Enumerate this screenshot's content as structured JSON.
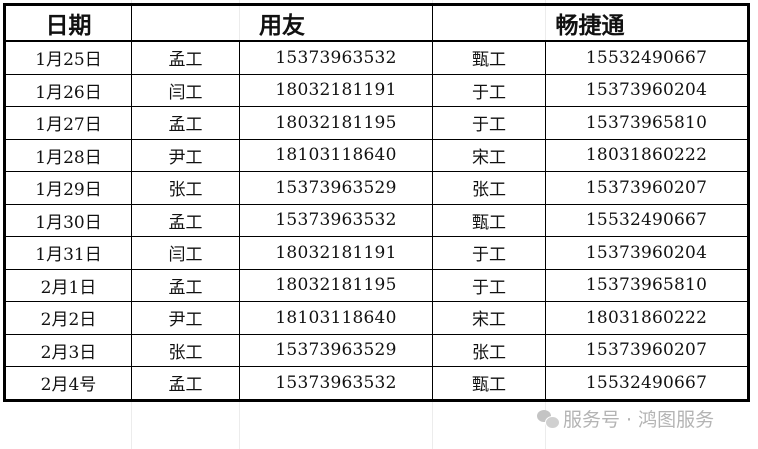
{
  "header": {
    "date": "日期",
    "vendor_a": "用友",
    "vendor_b": "畅捷通"
  },
  "rows": [
    {
      "date": "1月25日",
      "a_name": "孟工",
      "a_phone": "15373963532",
      "b_name": "甄工",
      "b_phone": "15532490667"
    },
    {
      "date": "1月26日",
      "a_name": "闫工",
      "a_phone": "18032181191",
      "b_name": "于工",
      "b_phone": "15373960204"
    },
    {
      "date": "1月27日",
      "a_name": "孟工",
      "a_phone": "18032181195",
      "b_name": "于工",
      "b_phone": "15373965810"
    },
    {
      "date": "1月28日",
      "a_name": "尹工",
      "a_phone": "18103118640",
      "b_name": "宋工",
      "b_phone": "18031860222"
    },
    {
      "date": "1月29日",
      "a_name": "张工",
      "a_phone": "15373963529",
      "b_name": "张工",
      "b_phone": "15373960207"
    },
    {
      "date": "1月30日",
      "a_name": "孟工",
      "a_phone": "15373963532",
      "b_name": "甄工",
      "b_phone": "15532490667"
    },
    {
      "date": "1月31日",
      "a_name": "闫工",
      "a_phone": "18032181191",
      "b_name": "于工",
      "b_phone": "15373960204"
    },
    {
      "date": "2月1日",
      "a_name": "孟工",
      "a_phone": "18032181195",
      "b_name": "于工",
      "b_phone": "15373965810"
    },
    {
      "date": "2月2日",
      "a_name": "尹工",
      "a_phone": "18103118640",
      "b_name": "宋工",
      "b_phone": "18031860222"
    },
    {
      "date": "2月3日",
      "a_name": "张工",
      "a_phone": "15373963529",
      "b_name": "张工",
      "b_phone": "15373960207"
    },
    {
      "date": "2月4号",
      "a_name": "孟工",
      "a_phone": "15373963532",
      "b_name": "甄工",
      "b_phone": "15532490667"
    }
  ],
  "watermark": {
    "text": "服务号 · 鸿图服务",
    "icon": "wechat-icon"
  }
}
